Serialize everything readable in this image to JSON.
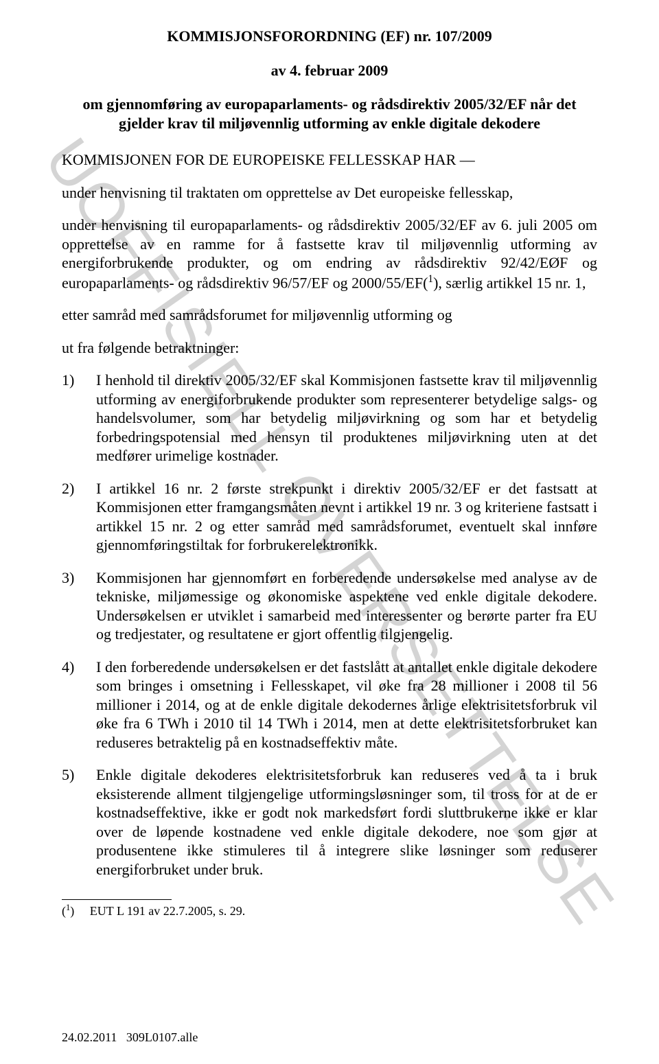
{
  "watermark": "UOFFISIELL OVERSETTELSE",
  "title": "KOMMISJONSFORORDNING (EF) nr. 107/2009",
  "subtitle": "av 4. februar 2009",
  "intro": "om gjennomføring av europaparlaments- og rådsdirektiv 2005/32/EF når det gjelder krav til miljøvennlig utforming av enkle digitale dekodere",
  "p1": "KOMMISJONEN FOR DE EUROPEISKE FELLESSKAP HAR —",
  "p2": "under henvisning til traktaten om opprettelse av Det europeiske fellesskap,",
  "p3_a": "under henvisning til europaparlaments- og rådsdirektiv 2005/32/EF av 6. juli 2005 om opprettelse av en ramme for å fastsette krav til miljøvennlig utforming av energiforbrukende produkter, og om endring av rådsdirektiv 92/42/EØF og europaparlaments- og rådsdirektiv 96/57/EF og 2000/55/EF(",
  "p3_sup": "1",
  "p3_b": "), særlig artikkel 15 nr. 1,",
  "p4": "etter samråd med samrådsforumet for miljøvennlig utforming og",
  "p5": "ut fra følgende betraktninger:",
  "items": [
    {
      "num": "1)",
      "text": "I henhold til direktiv 2005/32/EF skal Kommisjonen fastsette krav til miljøvennlig utforming av energiforbrukende produkter som representerer betydelige salgs- og handelsvolumer, som har betydelig miljøvirkning og som har et betydelig forbedringspotensial med hensyn til produktenes miljøvirkning uten at det medfører urimelige kostnader."
    },
    {
      "num": "2)",
      "text": "I artikkel 16 nr. 2 første strekpunkt i direktiv 2005/32/EF er det fastsatt at Kommisjonen etter framgangsmåten nevnt i artikkel 19 nr. 3 og kriteriene fastsatt i artikkel 15 nr. 2 og etter samråd med samrådsforumet, eventuelt skal innføre gjennomføringstiltak for forbrukerelektronikk."
    },
    {
      "num": "3)",
      "text": "Kommisjonen har gjennomført en forberedende undersøkelse med analyse av de tekniske, miljømessige og økonomiske aspektene ved enkle digitale dekodere. Undersøkelsen er utviklet i samarbeid med interessenter og berørte parter fra EU og tredjestater, og resultatene er gjort offentlig tilgjengelig."
    },
    {
      "num": "4)",
      "text": "I den forberedende undersøkelsen er det fastslått at antallet enkle digitale dekodere som bringes i omsetning i Fellesskapet, vil øke fra 28 millioner i 2008 til 56 millioner i 2014, og at de enkle digitale dekodernes årlige elektrisitetsforbruk vil øke fra 6 TWh i 2010 til 14 TWh i 2014, men at dette elektrisitetsforbruket kan reduseres betraktelig på en kostnadseffektiv måte."
    },
    {
      "num": "5)",
      "text": "Enkle digitale dekoderes elektrisitetsforbruk kan reduseres ved å ta i bruk eksisterende allment tilgjengelige utformingsløsninger som, til tross for at de er kostnadseffektive, ikke er godt nok markedsført fordi sluttbrukerne ikke er klar over de løpende kostnadene ved enkle digitale dekodere, noe som gjør at produsentene ikke stimuleres til å integrere slike løsninger som reduserer energiforbruket under bruk."
    }
  ],
  "footnote_marker": "1",
  "footnote_text": "EUT L 191 av 22.7.2005, s. 29.",
  "footer_date": "24.02.2011",
  "footer_ref": "309L0107.alle"
}
